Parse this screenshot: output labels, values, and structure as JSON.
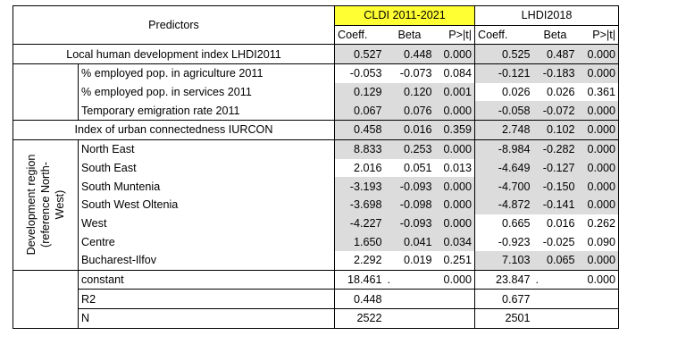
{
  "header": {
    "predictors": "Predictors",
    "model1": "CLDI 2011-2021",
    "model2": "LHDI2018",
    "coeff": "Coeff.",
    "beta": "Beta",
    "p": "P>|t|"
  },
  "rows": [
    {
      "label": "Local human development index LHDI2011",
      "c1": "0.527",
      "b1": "0.448",
      "p1": "0.000",
      "c2": "0.525",
      "b2": "0.487",
      "p2": "0.000"
    },
    {
      "label": "% employed pop. in agriculture 2011",
      "c1": "-0.053",
      "b1": "-0.073",
      "p1": "0.084",
      "c2": "-0.121",
      "b2": "-0.183",
      "p2": "0.000"
    },
    {
      "label": "% employed pop. in services 2011",
      "c1": "0.129",
      "b1": "0.120",
      "p1": "0.001",
      "c2": "0.026",
      "b2": "0.026",
      "p2": "0.361"
    },
    {
      "label": "Temporary emigration rate 2011",
      "c1": "0.067",
      "b1": "0.076",
      "p1": "0.000",
      "c2": "-0.058",
      "b2": "-0.072",
      "p2": "0.000"
    },
    {
      "label": "Index of urban connectedness IURCON",
      "c1": "0.458",
      "b1": "0.016",
      "p1": "0.359",
      "c2": "2.748",
      "b2": "0.102",
      "p2": "0.000"
    },
    {
      "label": "North East",
      "c1": "8.833",
      "b1": "0.253",
      "p1": "0.000",
      "c2": "-8.984",
      "b2": "-0.282",
      "p2": "0.000"
    },
    {
      "label": "South East",
      "c1": "2.016",
      "b1": "0.051",
      "p1": "0.013",
      "c2": "-4.649",
      "b2": "-0.127",
      "p2": "0.000"
    },
    {
      "label": "South Muntenia",
      "c1": "-3.193",
      "b1": "-0.093",
      "p1": "0.000",
      "c2": "-4.700",
      "b2": "-0.150",
      "p2": "0.000"
    },
    {
      "label": "South West Oltenia",
      "c1": "-3.698",
      "b1": "-0.098",
      "p1": "0.000",
      "c2": "-4.872",
      "b2": "-0.141",
      "p2": "0.000"
    },
    {
      "label": "West",
      "c1": "-4.227",
      "b1": "-0.093",
      "p1": "0.000",
      "c2": "0.665",
      "b2": "0.016",
      "p2": "0.262"
    },
    {
      "label": "Centre",
      "c1": "1.650",
      "b1": "0.041",
      "p1": "0.034",
      "c2": "-0.923",
      "b2": "-0.025",
      "p2": "0.090"
    },
    {
      "label": "Bucharest-Ilfov",
      "c1": "2.292",
      "b1": "0.019",
      "p1": "0.251",
      "c2": "7.103",
      "b2": "0.065",
      "p2": "0.000"
    },
    {
      "label": "constant",
      "c1": "18.461",
      "b1": ".",
      "p1": "0.000",
      "c2": "23.847",
      "b2": ".",
      "p2": "0.000"
    },
    {
      "label": "R2",
      "c1": "0.448",
      "c2": "0.677"
    },
    {
      "label": "N",
      "c1": "2522",
      "c2": "2501"
    }
  ],
  "region_group": {
    "line1": "Development region",
    "line2": "(reference North-",
    "line3": "West)"
  }
}
